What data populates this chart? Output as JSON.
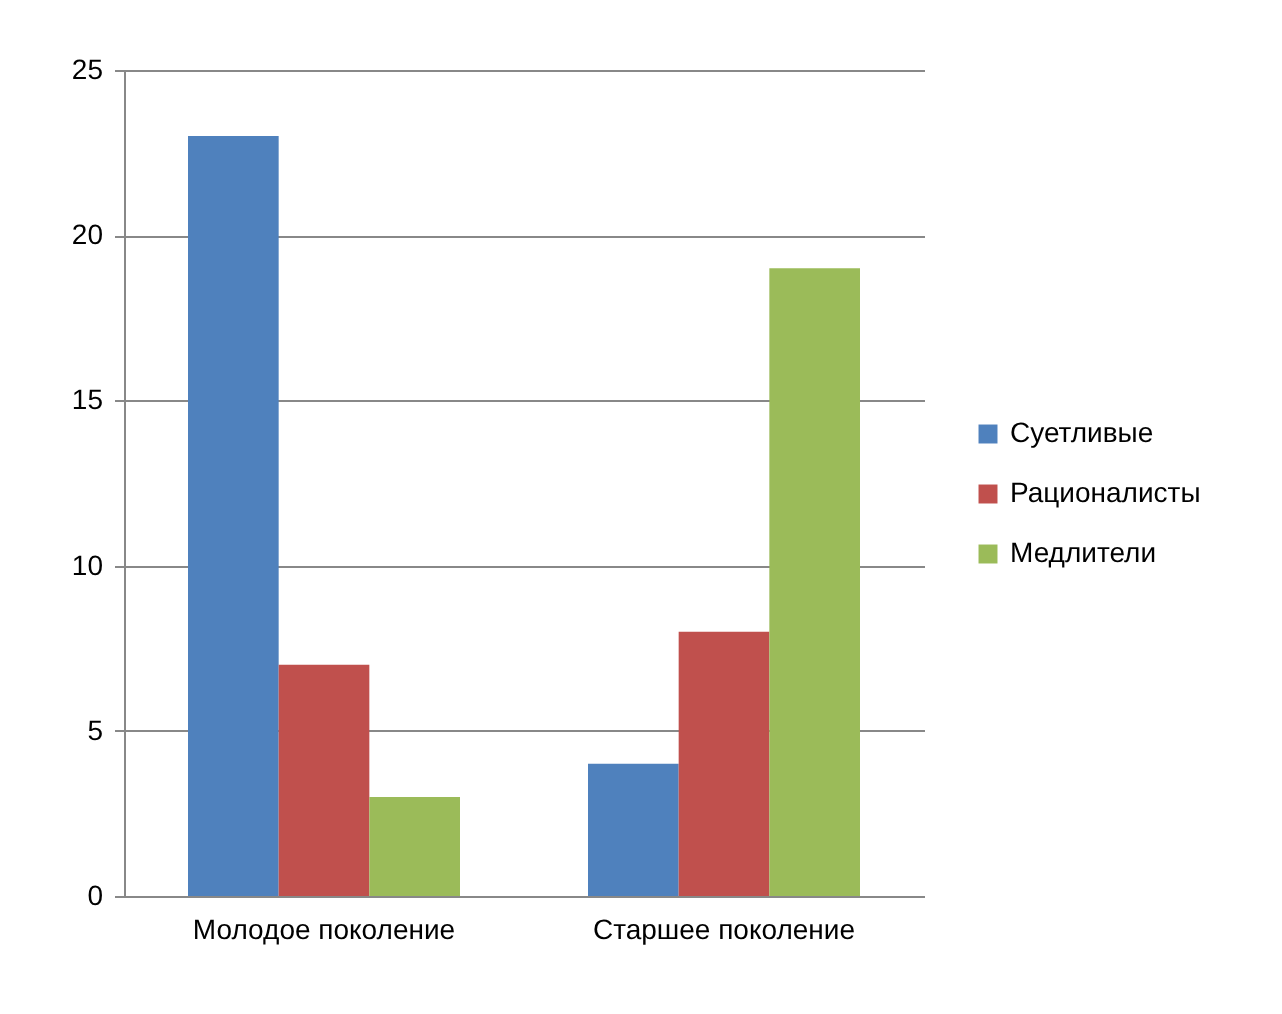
{
  "chart_data": {
    "type": "bar",
    "categories": [
      "Молодое поколение",
      "Старшее поколение"
    ],
    "series": [
      {
        "name": "Суетливые",
        "color": "#4f81bd",
        "values": [
          23,
          4
        ]
      },
      {
        "name": "Рационалисты",
        "color": "#c0504d",
        "values": [
          7,
          8
        ]
      },
      {
        "name": "Медлители",
        "color": "#9bbb59",
        "values": [
          3,
          19
        ]
      }
    ],
    "ylim": [
      0,
      25
    ],
    "yticks": [
      0,
      5,
      10,
      15,
      20,
      25
    ],
    "grid": "y",
    "legend": "right"
  }
}
